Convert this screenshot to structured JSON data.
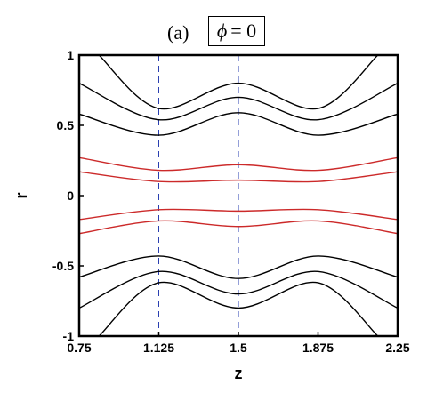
{
  "header": {
    "panel_label": "(a)",
    "condition_symbol": "ϕ",
    "condition_rest": "= 0"
  },
  "chart_data": {
    "type": "line",
    "title": "(a) ϕ = 0",
    "xlabel": "z",
    "ylabel": "r",
    "xlim": [
      0.75,
      2.25
    ],
    "ylim": [
      -1,
      1
    ],
    "xticks": [
      0.75,
      1.125,
      1.5,
      1.875,
      2.25
    ],
    "xtick_labels": [
      "0.75",
      "1.125",
      "1.5",
      "1.875",
      "2.25"
    ],
    "yticks": [
      -1,
      -0.5,
      0,
      0.5,
      1
    ],
    "ytick_labels": [
      "-1",
      "-0.5",
      "0",
      "0.5",
      "1"
    ],
    "vertical_reference_lines": [
      1.125,
      1.5,
      1.875
    ],
    "grid": false,
    "colors": {
      "outer_streamlines": "#000000",
      "inner_streamlines": "#cc2a2a",
      "reference_lines": "#2a3fb0"
    },
    "series": [
      {
        "color": "#000000",
        "values": [
          [
            0.843,
            1.0
          ],
          [
            1.125,
            0.62
          ],
          [
            1.5,
            0.8
          ],
          [
            1.875,
            0.62
          ],
          [
            2.157,
            1.0
          ]
        ]
      },
      {
        "color": "#000000",
        "values": [
          [
            0.75,
            0.8
          ],
          [
            1.125,
            0.54
          ],
          [
            1.5,
            0.7
          ],
          [
            1.875,
            0.54
          ],
          [
            2.25,
            0.8
          ]
        ]
      },
      {
        "color": "#000000",
        "values": [
          [
            0.75,
            0.58
          ],
          [
            1.125,
            0.43
          ],
          [
            1.5,
            0.59
          ],
          [
            1.875,
            0.43
          ],
          [
            2.25,
            0.58
          ]
        ]
      },
      {
        "color": "#cc2a2a",
        "values": [
          [
            0.75,
            0.27
          ],
          [
            1.125,
            0.18
          ],
          [
            1.5,
            0.22
          ],
          [
            1.875,
            0.18
          ],
          [
            2.25,
            0.27
          ]
        ]
      },
      {
        "color": "#cc2a2a",
        "values": [
          [
            0.75,
            0.17
          ],
          [
            1.125,
            0.1
          ],
          [
            1.5,
            0.11
          ],
          [
            1.875,
            0.1
          ],
          [
            2.25,
            0.17
          ]
        ]
      },
      {
        "color": "#cc2a2a",
        "values": [
          [
            0.75,
            -0.17
          ],
          [
            1.125,
            -0.1
          ],
          [
            1.5,
            -0.11
          ],
          [
            1.875,
            -0.1
          ],
          [
            2.25,
            -0.17
          ]
        ]
      },
      {
        "color": "#cc2a2a",
        "values": [
          [
            0.75,
            -0.27
          ],
          [
            1.125,
            -0.18
          ],
          [
            1.5,
            -0.22
          ],
          [
            1.875,
            -0.18
          ],
          [
            2.25,
            -0.27
          ]
        ]
      },
      {
        "color": "#000000",
        "values": [
          [
            0.75,
            -0.58
          ],
          [
            1.125,
            -0.43
          ],
          [
            1.5,
            -0.59
          ],
          [
            1.875,
            -0.43
          ],
          [
            2.25,
            -0.58
          ]
        ]
      },
      {
        "color": "#000000",
        "values": [
          [
            0.75,
            -0.8
          ],
          [
            1.125,
            -0.54
          ],
          [
            1.5,
            -0.7
          ],
          [
            1.875,
            -0.54
          ],
          [
            2.25,
            -0.8
          ]
        ]
      },
      {
        "color": "#000000",
        "values": [
          [
            0.843,
            -1.0
          ],
          [
            1.125,
            -0.62
          ],
          [
            1.5,
            -0.8
          ],
          [
            1.875,
            -0.62
          ],
          [
            2.157,
            -1.0
          ]
        ]
      }
    ]
  }
}
